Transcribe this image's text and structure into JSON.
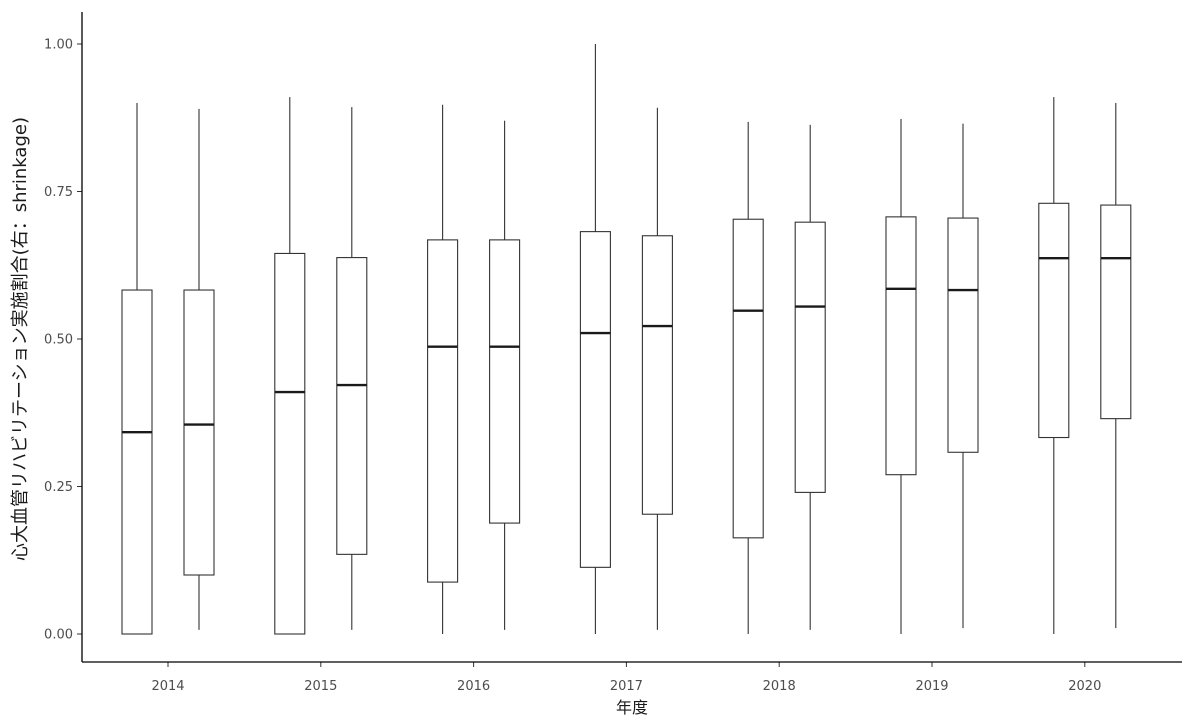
{
  "chart_data": {
    "type": "boxplot",
    "xlabel": "年度",
    "ylabel": "心大血管リハビリテーション実施割合(右：shrinkage)",
    "ylim": [
      0,
      1
    ],
    "yticks": [
      "0.00",
      "0.25",
      "0.50",
      "0.75",
      "1.00"
    ],
    "categories": [
      "2014",
      "2015",
      "2016",
      "2017",
      "2018",
      "2019",
      "2020"
    ],
    "series": [
      {
        "name": "",
        "boxes": [
          {
            "min": 0.0,
            "q1": 0.0,
            "median": 0.342,
            "q3": 0.583,
            "max": 0.9
          },
          {
            "min": 0.0,
            "q1": 0.0,
            "median": 0.41,
            "q3": 0.645,
            "max": 0.91
          },
          {
            "min": 0.0,
            "q1": 0.088,
            "median": 0.487,
            "q3": 0.668,
            "max": 0.897
          },
          {
            "min": 0.0,
            "q1": 0.113,
            "median": 0.51,
            "q3": 0.682,
            "max": 1.0
          },
          {
            "min": 0.0,
            "q1": 0.163,
            "median": 0.548,
            "q3": 0.703,
            "max": 0.868
          },
          {
            "min": 0.0,
            "q1": 0.27,
            "median": 0.585,
            "q3": 0.707,
            "max": 0.873
          },
          {
            "min": 0.0,
            "q1": 0.333,
            "median": 0.637,
            "q3": 0.73,
            "max": 0.91
          }
        ]
      },
      {
        "name": "",
        "boxes": [
          {
            "min": 0.007,
            "q1": 0.1,
            "median": 0.355,
            "q3": 0.583,
            "max": 0.89
          },
          {
            "min": 0.007,
            "q1": 0.135,
            "median": 0.422,
            "q3": 0.638,
            "max": 0.893
          },
          {
            "min": 0.007,
            "q1": 0.188,
            "median": 0.487,
            "q3": 0.668,
            "max": 0.87
          },
          {
            "min": 0.007,
            "q1": 0.203,
            "median": 0.522,
            "q3": 0.675,
            "max": 0.892
          },
          {
            "min": 0.007,
            "q1": 0.24,
            "median": 0.555,
            "q3": 0.698,
            "max": 0.863
          },
          {
            "min": 0.01,
            "q1": 0.308,
            "median": 0.583,
            "q3": 0.705,
            "max": 0.865
          },
          {
            "min": 0.01,
            "q1": 0.365,
            "median": 0.637,
            "q3": 0.727,
            "max": 0.9
          }
        ]
      }
    ],
    "grid": false,
    "legend": "none"
  }
}
